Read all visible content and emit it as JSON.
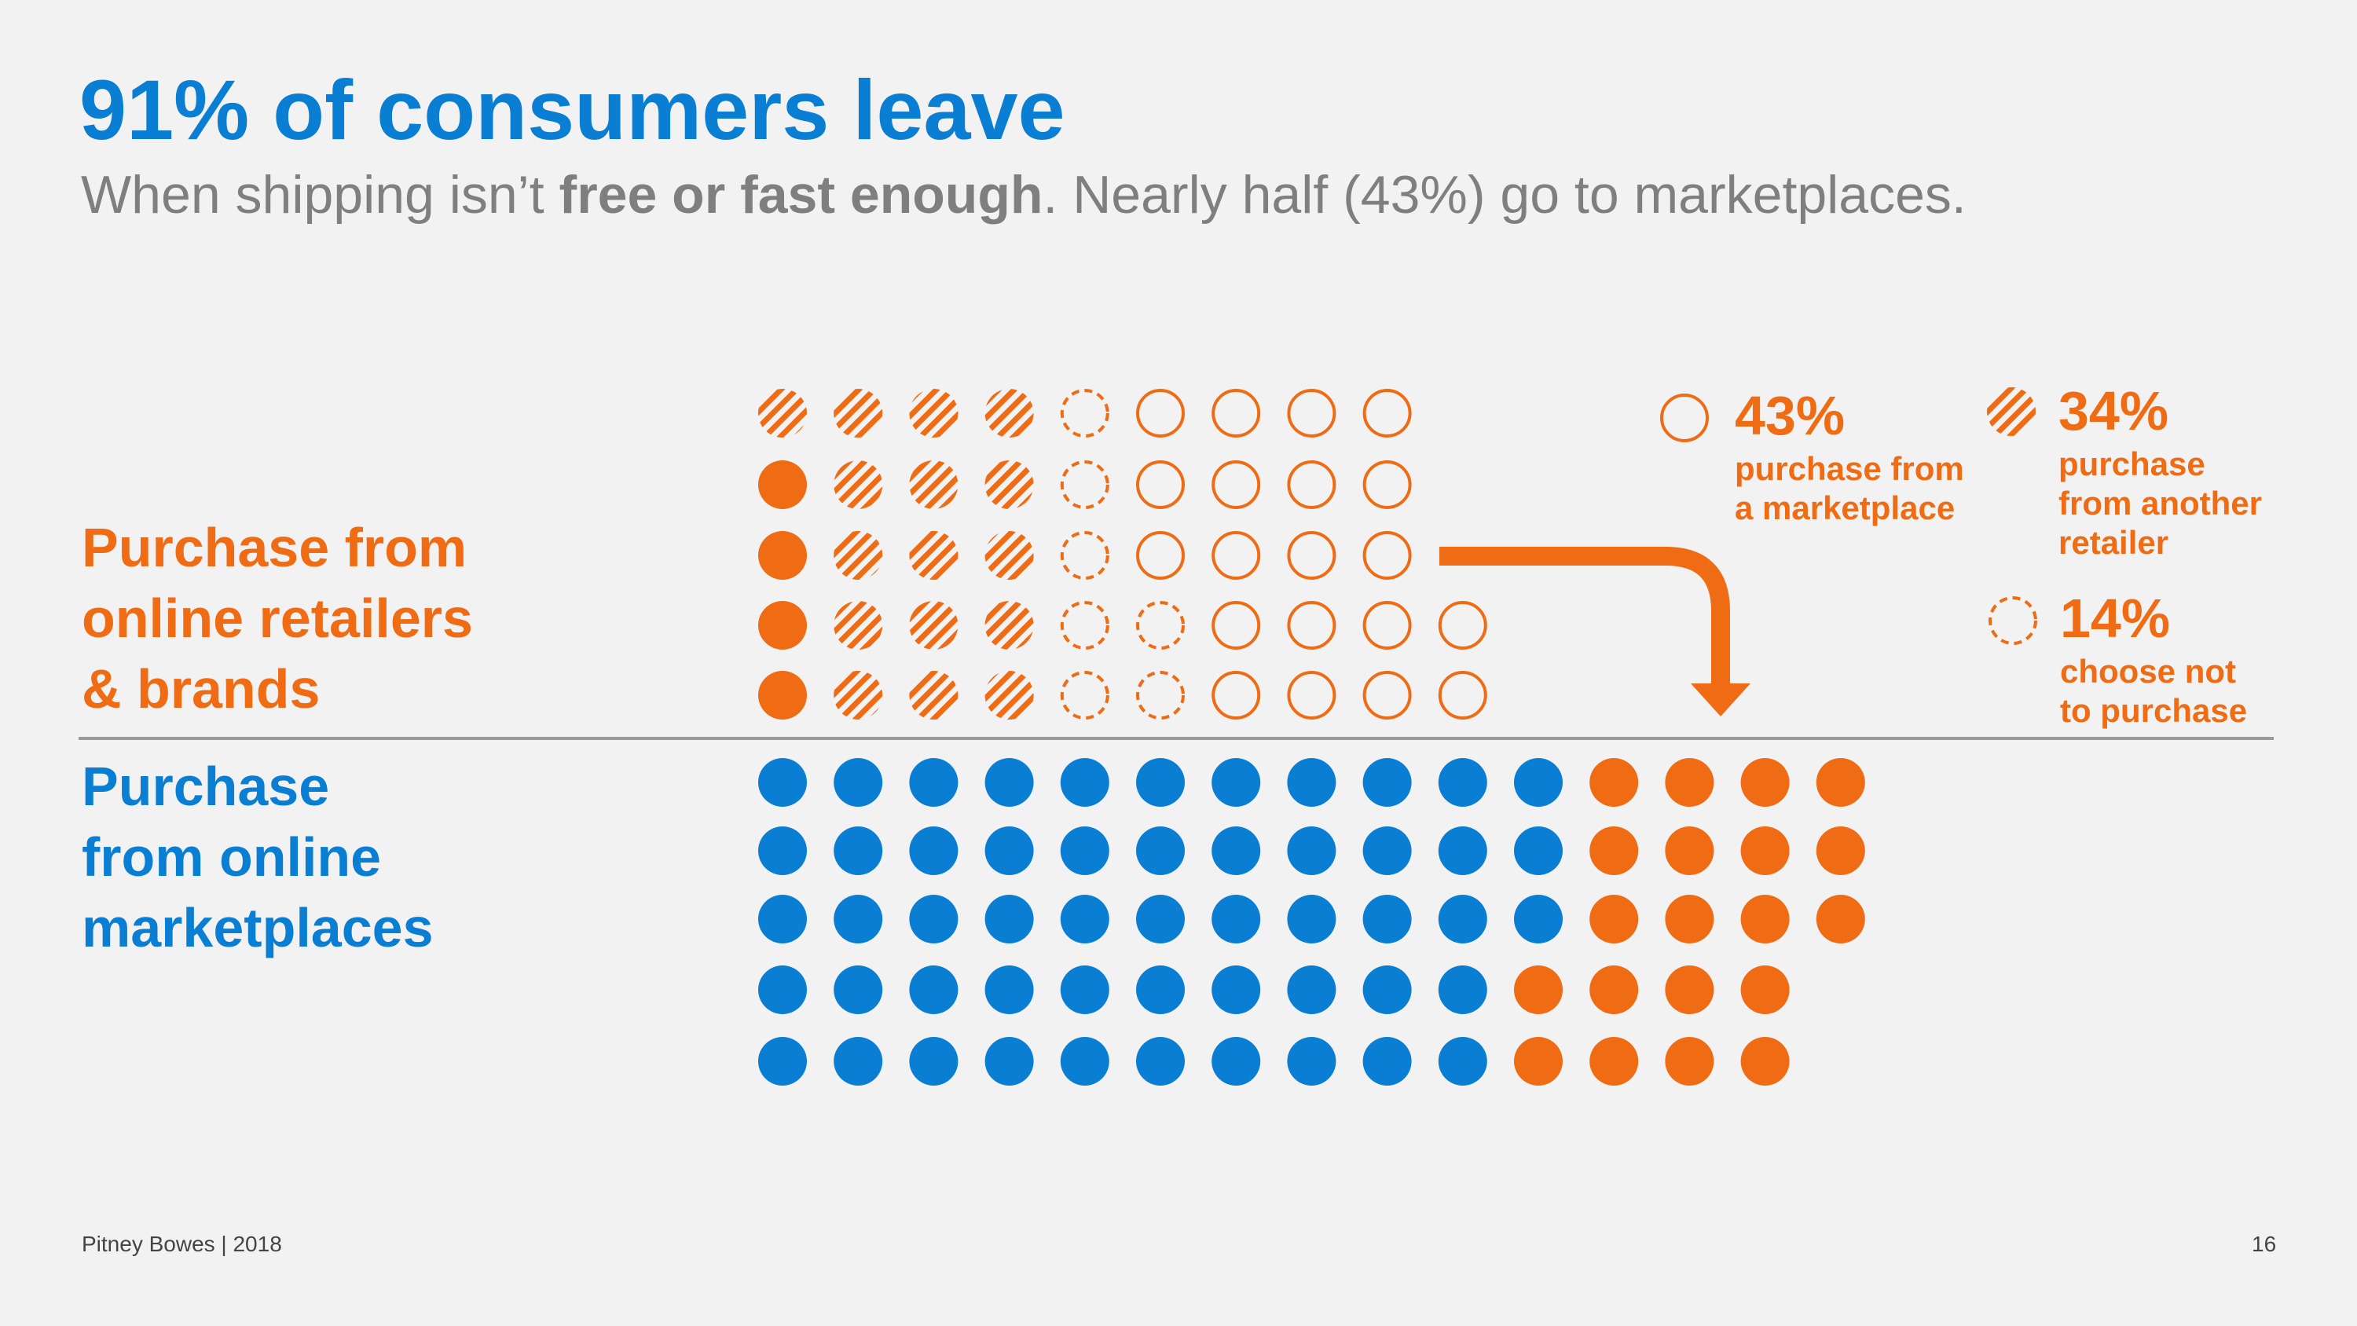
{
  "title": "91% of consumers leave",
  "subtitle": {
    "part1": "When shipping isn’t ",
    "bold": "free or fast enough",
    "part2": ". Nearly half (43%) go to marketplaces."
  },
  "labels": {
    "top": [
      "Purchase from",
      "online retailers",
      "& brands"
    ],
    "bottom": [
      "Purchase",
      "from online",
      "marketplaces"
    ]
  },
  "legend": [
    {
      "style": "outline",
      "percent": "43%",
      "lines": [
        "purchase from",
        "a marketplace"
      ]
    },
    {
      "style": "striped",
      "percent": "34%",
      "lines": [
        "purchase",
        "from another",
        "retailer"
      ]
    },
    {
      "style": "dashed",
      "percent": "14%",
      "lines": [
        "choose not",
        "to purchase"
      ]
    }
  ],
  "colors": {
    "orange": "#ef6c15",
    "blue": "#0a7ed3",
    "divider": "#9a9a9a",
    "text_gray": "#7f7f7f"
  },
  "retailer_grid": [
    [
      "striped",
      "striped",
      "striped",
      "striped",
      "dashed",
      "outline",
      "outline",
      "outline",
      "outline"
    ],
    [
      "solid",
      "striped",
      "striped",
      "striped",
      "dashed",
      "outline",
      "outline",
      "outline",
      "outline"
    ],
    [
      "solid",
      "striped",
      "striped",
      "striped",
      "dashed",
      "outline",
      "outline",
      "outline",
      "outline"
    ],
    [
      "solid",
      "striped",
      "striped",
      "striped",
      "dashed",
      "dashed",
      "outline",
      "outline",
      "outline",
      "outline"
    ],
    [
      "solid",
      "striped",
      "striped",
      "striped",
      "dashed",
      "dashed",
      "outline",
      "outline",
      "outline",
      "outline"
    ]
  ],
  "marketplace_grid": [
    {
      "blue": 11,
      "orange": 4
    },
    {
      "blue": 11,
      "orange": 4
    },
    {
      "blue": 11,
      "orange": 4
    },
    {
      "blue": 10,
      "orange": 4
    },
    {
      "blue": 10,
      "orange": 4
    }
  ],
  "footer": {
    "source": "Pitney Bowes | 2018",
    "page": "16"
  }
}
